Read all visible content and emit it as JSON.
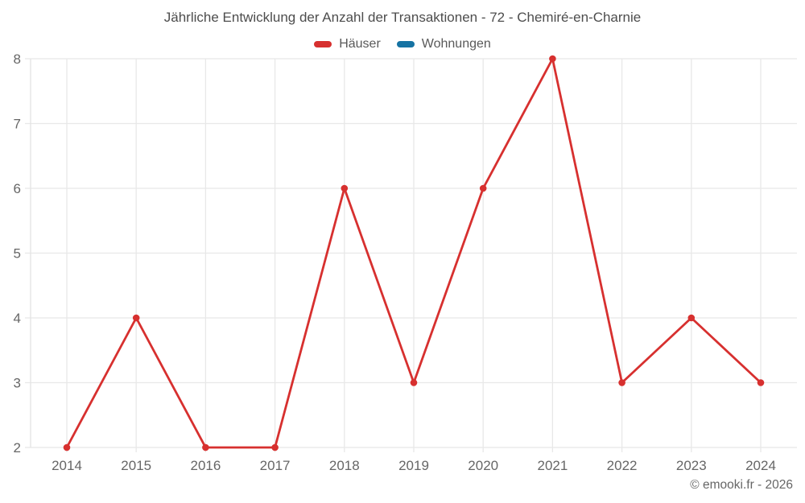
{
  "title": "Jährliche Entwicklung der Anzahl der Transaktionen - 72 - Chemiré-en-Charnie",
  "footer": "© emooki.fr - 2026",
  "colors": {
    "haeuser_red": "#d7302f",
    "wohnungen_blue": "#1673a3",
    "grid": "#e8e8e8",
    "axis_line": "#e3e3e3",
    "tick_text": "#666666",
    "title_text": "#4d4d4d",
    "legend_text": "#595959",
    "background": "#ffffff"
  },
  "chart_data": {
    "type": "line",
    "title": "Jährliche Entwicklung der Anzahl der Transaktionen - 72 - Chemiré-en-Charnie",
    "x": [
      "2014",
      "2015",
      "2016",
      "2017",
      "2018",
      "2019",
      "2020",
      "2021",
      "2022",
      "2023",
      "2024"
    ],
    "xlabel": "",
    "ylabel": "",
    "ylim": [
      2,
      8
    ],
    "yticks": [
      2,
      3,
      4,
      5,
      6,
      7,
      8
    ],
    "grid": true,
    "legend_position": "top",
    "series": [
      {
        "name": "Häuser",
        "color": "#d7302f",
        "marker": "circle",
        "values": [
          2,
          4,
          2,
          2,
          6,
          3,
          6,
          8,
          3,
          4,
          3
        ]
      },
      {
        "name": "Wohnungen",
        "color": "#1673a3",
        "marker": "circle",
        "values": []
      }
    ]
  }
}
